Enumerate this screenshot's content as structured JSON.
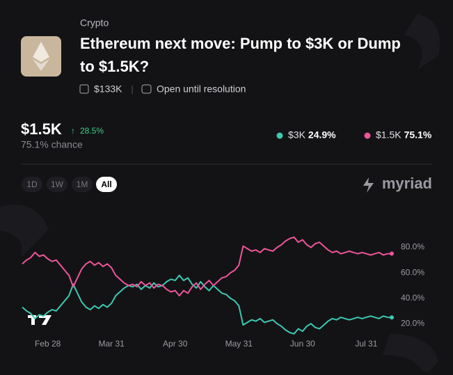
{
  "header": {
    "category": "Crypto",
    "title_line1": "Ethereum next move: Pump to $3K or Dump",
    "title_line2": "to $1.5K?",
    "volume": "$133K",
    "status": "Open until resolution"
  },
  "summary": {
    "change": "28.5%",
    "chance": "75.1% chance"
  },
  "controls": {
    "ranges": [
      "1D",
      "1W",
      "1M",
      "All"
    ],
    "active": 3,
    "brand": "myriad"
  },
  "chart_data": {
    "type": "line",
    "categories": [
      null,
      null,
      null,
      null,
      null,
      null,
      "Feb 28",
      null,
      null,
      null,
      null,
      null,
      null,
      null,
      null,
      null,
      null,
      null,
      null,
      null,
      null,
      "Mar 31",
      null,
      null,
      null,
      null,
      null,
      null,
      null,
      null,
      null,
      null,
      null,
      null,
      null,
      null,
      "Apr 30",
      null,
      null,
      null,
      null,
      null,
      null,
      null,
      null,
      null,
      null,
      null,
      null,
      null,
      null,
      "May 31",
      null,
      null,
      null,
      null,
      null,
      null,
      null,
      null,
      null,
      null,
      null,
      null,
      null,
      null,
      "Jun 30",
      null,
      null,
      null,
      null,
      null,
      null,
      null,
      null,
      null,
      null,
      null,
      null,
      null,
      null,
      "Jul 31",
      null,
      null,
      null,
      null,
      null,
      null
    ],
    "series": [
      {
        "name": "$3K",
        "color": "#3ec9b0",
        "last_label": "24.9%",
        "values": [
          33,
          30,
          28,
          24,
          27,
          26,
          29,
          31,
          30,
          34,
          38,
          42,
          51,
          44,
          37,
          33,
          31,
          34,
          32,
          35,
          33,
          36,
          42,
          45,
          48,
          50,
          49,
          51,
          47,
          50,
          48,
          52,
          49,
          50,
          53,
          55,
          54,
          58,
          54,
          56,
          51,
          48,
          53,
          49,
          46,
          50,
          47,
          44,
          43,
          40,
          38,
          34,
          19,
          21,
          23,
          22,
          24,
          21,
          22,
          23,
          20,
          18,
          15,
          13,
          12,
          16,
          14,
          18,
          20,
          17,
          16,
          19,
          22,
          24,
          23,
          25,
          24,
          23,
          24,
          25,
          24,
          25,
          26,
          25,
          24,
          26,
          25,
          24.9
        ]
      },
      {
        "name": "$1.5K",
        "color": "#f0559a",
        "last_label": "75.1%",
        "values": [
          67,
          70,
          72,
          76,
          73,
          74,
          71,
          69,
          70,
          66,
          62,
          58,
          49,
          56,
          63,
          67,
          69,
          66,
          68,
          65,
          67,
          64,
          58,
          55,
          52,
          50,
          51,
          49,
          53,
          50,
          52,
          48,
          51,
          50,
          47,
          45,
          46,
          42,
          46,
          44,
          49,
          52,
          47,
          51,
          54,
          50,
          53,
          56,
          57,
          60,
          62,
          66,
          81,
          79,
          77,
          78,
          76,
          79,
          78,
          77,
          80,
          82,
          85,
          87,
          88,
          84,
          86,
          82,
          80,
          83,
          84,
          81,
          78,
          76,
          77,
          75,
          76,
          77,
          76,
          75,
          76,
          75,
          74,
          75,
          76,
          74,
          75,
          75.1
        ]
      }
    ],
    "ylim": [
      10,
      100
    ],
    "yticks": [
      {
        "value": 20,
        "label": "20.0%"
      },
      {
        "value": 40,
        "label": "40.0%"
      },
      {
        "value": 60,
        "label": "60.0%"
      },
      {
        "value": 80,
        "label": "80.0%"
      }
    ],
    "grid": false
  }
}
